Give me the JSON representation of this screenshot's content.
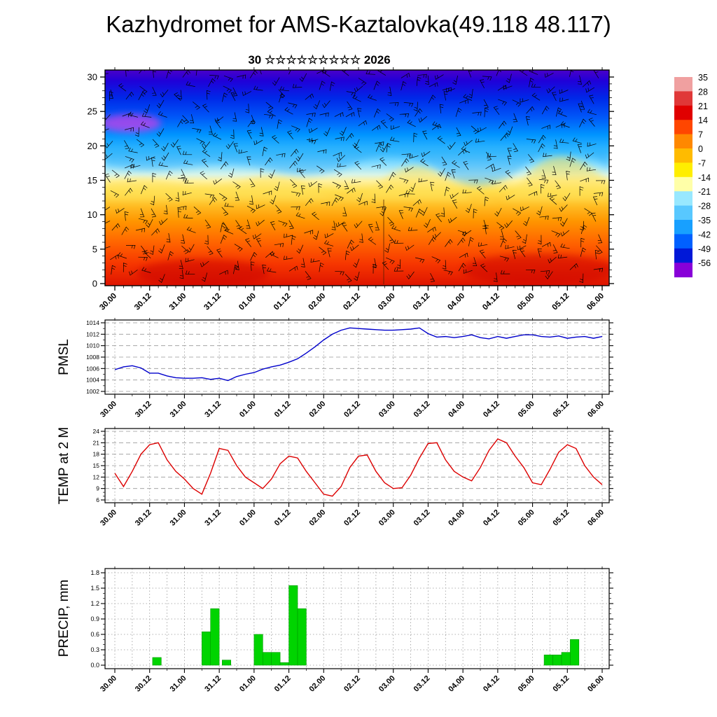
{
  "title": "Kazhydromet for AMS-Kaztalovka(49.118 48.117)",
  "subtitle": "30 ☆☆☆☆☆☆☆☆☆ 2026",
  "x_tick_labels": [
    "30.00",
    "30.12",
    "31.00",
    "31.12",
    "01.00",
    "01.12",
    "02.00",
    "02.12",
    "03.00",
    "03.12",
    "04.00",
    "04.12",
    "05.00",
    "05.12",
    "06.00"
  ],
  "chart_data": [
    {
      "type": "heatmap",
      "name": "temperature-height-cross-section",
      "title": "30 ☆☆☆☆☆☆☆☆☆ 2026",
      "ylabel": "",
      "ylim": [
        0,
        31
      ],
      "yticks": [
        0,
        5,
        10,
        15,
        20,
        25,
        30
      ],
      "x_hours_range": [
        0,
        168
      ],
      "overlay": "wind-barbs",
      "legend_position": "right-colorbar",
      "gradient_stops": [
        [
          0.0,
          "#4a00c8"
        ],
        [
          0.05,
          "#2000d8"
        ],
        [
          0.13,
          "#0028e8"
        ],
        [
          0.22,
          "#0058f8"
        ],
        [
          0.3,
          "#0094ff"
        ],
        [
          0.38,
          "#38bcff"
        ],
        [
          0.44,
          "#8cdfff"
        ],
        [
          0.485,
          "#d8f4e8"
        ],
        [
          0.515,
          "#fff2a0"
        ],
        [
          0.56,
          "#ffdf50"
        ],
        [
          0.62,
          "#ffc128"
        ],
        [
          0.7,
          "#ff9600"
        ],
        [
          0.8,
          "#ff6400"
        ],
        [
          0.9,
          "#f63600"
        ],
        [
          1.0,
          "#de1400"
        ]
      ]
    },
    {
      "type": "line",
      "name": "pmsl",
      "ylabel": "PMSL",
      "color": "#0000cc",
      "ylim": [
        1002,
        1014
      ],
      "yticks": [
        1002,
        1004,
        1006,
        1008,
        1010,
        1012,
        1014
      ],
      "x_step_hours": 3,
      "values": [
        1005.8,
        1006.3,
        1006.5,
        1006.1,
        1005.2,
        1005.2,
        1004.7,
        1004.4,
        1004.3,
        1004.3,
        1004.4,
        1004.1,
        1004.3,
        1003.9,
        1004.6,
        1005.0,
        1005.3,
        1005.9,
        1006.3,
        1006.6,
        1007.1,
        1007.7,
        1008.7,
        1009.8,
        1011.0,
        1012.0,
        1012.7,
        1013.1,
        1013.0,
        1012.9,
        1012.8,
        1012.7,
        1012.7,
        1012.8,
        1012.9,
        1013.1,
        1012.1,
        1011.5,
        1011.6,
        1011.4,
        1011.6,
        1011.9,
        1011.4,
        1011.2,
        1011.6,
        1011.3,
        1011.6,
        1011.9,
        1011.9,
        1011.6,
        1011.5,
        1011.7,
        1011.3,
        1011.5,
        1011.6,
        1011.3,
        1011.6
      ]
    },
    {
      "type": "line",
      "name": "temp-at-2m",
      "ylabel": "TEMP at 2 M",
      "color": "#dd0000",
      "ylim": [
        6,
        24
      ],
      "yticks": [
        6,
        9,
        12,
        15,
        18,
        21,
        24
      ],
      "x_step_hours": 3,
      "values": [
        13.0,
        9.5,
        13.5,
        18.0,
        20.5,
        21.0,
        16.5,
        13.5,
        11.5,
        9.0,
        7.5,
        13.0,
        19.5,
        19.0,
        15.0,
        12.0,
        10.5,
        9.0,
        11.5,
        15.5,
        17.5,
        17.0,
        13.5,
        10.5,
        7.5,
        7.0,
        9.5,
        14.5,
        17.5,
        17.8,
        13.5,
        10.5,
        9.0,
        9.2,
        12.5,
        17.0,
        20.8,
        21.0,
        16.5,
        13.5,
        12.0,
        11.0,
        14.5,
        19.0,
        22.0,
        21.0,
        17.5,
        14.5,
        10.5,
        10.0,
        14.0,
        18.5,
        20.5,
        19.5,
        15.0,
        12.0,
        10.0
      ]
    },
    {
      "type": "bar",
      "name": "precip",
      "ylabel": "PRECIP, mm",
      "color": "#00d400",
      "ylim": [
        0,
        1.9
      ],
      "yticks": [
        0.0,
        0.3,
        0.6,
        0.9,
        1.2,
        1.5,
        1.8
      ],
      "bar_width_hours": 3,
      "bars": [
        {
          "t": 13,
          "v": 0.15
        },
        {
          "t": 30,
          "v": 0.65
        },
        {
          "t": 33,
          "v": 1.1
        },
        {
          "t": 37,
          "v": 0.1
        },
        {
          "t": 48,
          "v": 0.6
        },
        {
          "t": 51,
          "v": 0.25
        },
        {
          "t": 54,
          "v": 0.25
        },
        {
          "t": 57,
          "v": 0.05
        },
        {
          "t": 60,
          "v": 1.55
        },
        {
          "t": 63,
          "v": 1.1
        },
        {
          "t": 148,
          "v": 0.2
        },
        {
          "t": 151,
          "v": 0.2
        },
        {
          "t": 154,
          "v": 0.25
        },
        {
          "t": 157,
          "v": 0.5
        }
      ]
    }
  ],
  "colorbar": {
    "labels": [
      "35",
      "28",
      "21",
      "14",
      "7",
      "0",
      "-7",
      "-14",
      "-21",
      "-28",
      "-35",
      "-42",
      "-49",
      "-56"
    ],
    "colors": [
      "#f0a0a0",
      "#e03838",
      "#e00000",
      "#ff4600",
      "#ff8800",
      "#ffbb00",
      "#ffee00",
      "#ffffa8",
      "#98e8ff",
      "#58c8ff",
      "#18a0ff",
      "#0060ff",
      "#0018d8",
      "#8800d8"
    ]
  }
}
